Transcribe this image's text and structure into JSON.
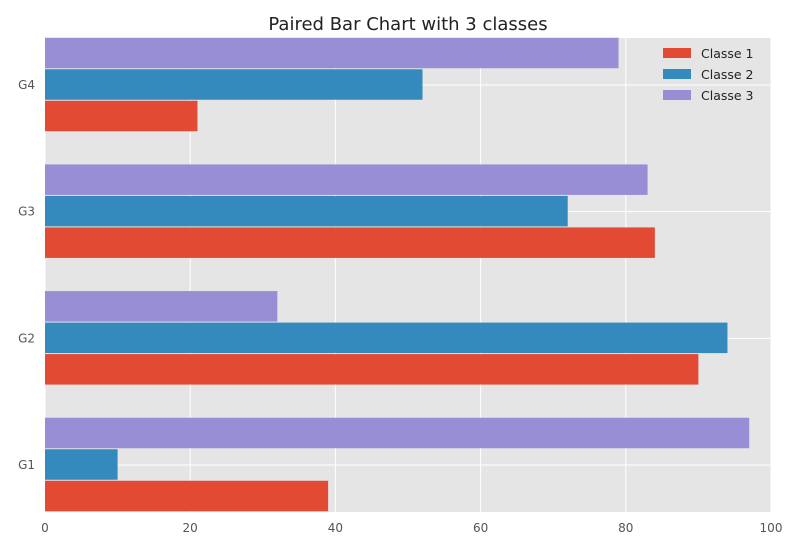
{
  "chart_data": {
    "type": "bar",
    "orientation": "horizontal",
    "title": "Paired Bar Chart with 3 classes",
    "xlabel": "",
    "ylabel": "",
    "categories": [
      "G1",
      "G2",
      "G3",
      "G4"
    ],
    "series": [
      {
        "name": "Classe 1",
        "color": "#E24A33",
        "values": [
          39,
          90,
          84,
          21
        ]
      },
      {
        "name": "Classe 2",
        "color": "#348ABD",
        "values": [
          10,
          94,
          72,
          52
        ]
      },
      {
        "name": "Classe 3",
        "color": "#988ED5",
        "values": [
          97,
          32,
          83,
          79
        ]
      }
    ],
    "xlim": [
      0,
      100
    ],
    "xticks": [
      "0",
      "20",
      "40",
      "60",
      "80",
      "100"
    ],
    "grid": true,
    "legend_position": "top-right",
    "background": "#E5E5E5"
  }
}
